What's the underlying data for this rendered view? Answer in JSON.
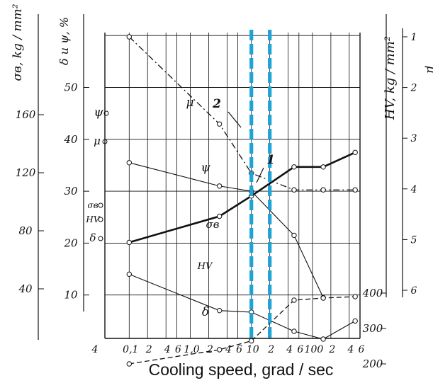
{
  "chart_data": {
    "type": "line",
    "xlabel": "Cooling speed, grad / sec",
    "x_scale": "log",
    "x_tick_labels": [
      "4",
      "0,1",
      "2",
      "4",
      "6",
      "1,0",
      "2",
      "4",
      "6",
      "10",
      "2",
      "4",
      "6",
      "100",
      "2",
      "4",
      "6"
    ],
    "x_tick_values": [
      0.04,
      0.1,
      0.2,
      0.4,
      0.6,
      1,
      2,
      4,
      6,
      10,
      20,
      40,
      60,
      100,
      200,
      400,
      600
    ],
    "axes": {
      "sigma": {
        "label": "σв, kg / mm²",
        "ticks": [
          "40",
          "80",
          "120",
          "160"
        ],
        "tick_values": [
          40,
          80,
          120,
          160
        ],
        "range": [
          0,
          200
        ]
      },
      "delta_psi": {
        "label": "δ и ψ, %",
        "ticks": [
          "10",
          "20",
          "30",
          "40",
          "50"
        ],
        "tick_values": [
          10,
          20,
          30,
          40,
          50
        ],
        "range": [
          0,
          60
        ]
      },
      "hv": {
        "label": "HV, kg / mm²",
        "ticks": [
          "200",
          "300",
          "400"
        ],
        "tick_values": [
          200,
          300,
          400
        ],
        "range": [
          100,
          600
        ]
      },
      "mu": {
        "label": "μ",
        "ticks": [
          "1",
          "2",
          "3",
          "4",
          "5",
          "6"
        ],
        "tick_values": [
          1,
          2,
          3,
          4,
          5,
          6
        ]
      }
    },
    "left_markers": [
      "ψ",
      "μ",
      "σв",
      "HV",
      "δ"
    ],
    "series": [
      {
        "name": "ψ",
        "axis": "delta_psi",
        "style": "solid-thin",
        "x": [
          0.1,
          3,
          10,
          50,
          150
        ],
        "y": [
          35.5,
          31,
          30,
          21.5,
          9.5
        ]
      },
      {
        "name": "μ",
        "axis": "mu",
        "style": "dash-dot",
        "x": [
          0.1,
          3,
          10,
          50,
          150,
          500
        ],
        "y": [
          1,
          2.72,
          3.69,
          4.02,
          4.02,
          4.02
        ]
      },
      {
        "name": "σв",
        "axis": "sigma",
        "style": "solid-thick",
        "x": [
          0.1,
          3,
          10,
          50,
          150,
          500
        ],
        "y": [
          72,
          90,
          104,
          124,
          124,
          134
        ]
      },
      {
        "name": "HV",
        "axis": "hv",
        "style": "dashed",
        "x": [
          0.1,
          3,
          10,
          50,
          150,
          500
        ],
        "y": [
          200,
          240,
          265,
          380,
          386,
          390
        ]
      },
      {
        "name": "δ",
        "axis": "delta_psi",
        "style": "solid-thin",
        "x": [
          0.1,
          3,
          10,
          50,
          150,
          500
        ],
        "y": [
          14,
          7,
          6.7,
          3,
          1.5,
          5
        ]
      }
    ],
    "annotations": [
      {
        "text": "1",
        "x": 20
      },
      {
        "text": "2",
        "x": 10
      }
    ],
    "reference_lines": [
      {
        "label": "2",
        "x": 10,
        "color": "#1fa3d6",
        "style": "dashed"
      },
      {
        "label": "1",
        "x": 20,
        "color": "#1fa3d6",
        "style": "dashed"
      }
    ],
    "grid": true
  },
  "colors": {
    "ink": "#111111",
    "marker_line": "#1fa3d6"
  }
}
